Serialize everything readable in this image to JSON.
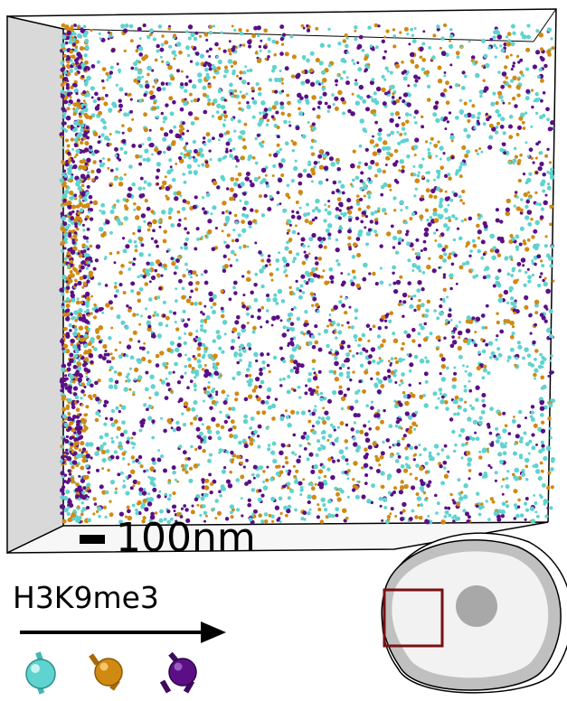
{
  "figure": {
    "scale_bar_label": "100nm",
    "histone_mark_label": "H3K9me3",
    "colors": {
      "low_methylation": "#5fd3cf",
      "mid_methylation": "#d08a12",
      "high_methylation": "#5a0f86",
      "box_wall": "#d9d9d9",
      "nucleus_fill": "#f2f2f2",
      "nucleus_shade": "#c0c0c0",
      "nucleus_region": "#a8a8a8",
      "region_box": "#7a1010"
    },
    "legend_beads": [
      {
        "icon": "cyan-bead-icon"
      },
      {
        "icon": "orange-bead-icon"
      },
      {
        "icon": "purple-bead-icon"
      }
    ]
  }
}
